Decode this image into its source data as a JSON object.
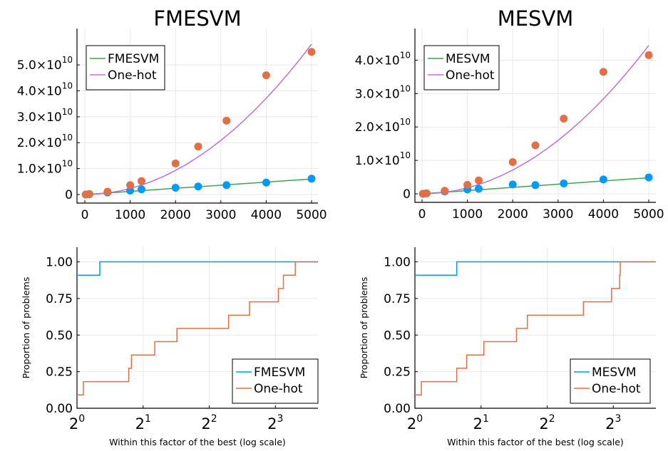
{
  "colors": {
    "green": "#3da44d",
    "purple": "#c271d2",
    "blue": "#009af9",
    "orange": "#e26f46",
    "scatter_blue": "#009af9",
    "scatter_orange": "#e26f46"
  },
  "chart_data": [
    {
      "type": "scatter",
      "title": "FMESVM",
      "xlabel": "",
      "ylabel": "",
      "xlim": [
        0,
        5000
      ],
      "ylim": [
        0,
        58000000000
      ],
      "x_ticks": [
        0,
        1000,
        2000,
        3000,
        4000,
        5000
      ],
      "x_tick_labels": [
        "0",
        "1000",
        "2000",
        "3000",
        "4000",
        "5000"
      ],
      "y_ticks": [
        0,
        10000000000,
        20000000000,
        30000000000,
        40000000000,
        50000000000
      ],
      "y_tick_labels": [
        {
          "base": "0",
          "exp": ""
        },
        {
          "base": "1.0×10",
          "exp": "10"
        },
        {
          "base": "2.0×10",
          "exp": "10"
        },
        {
          "base": "3.0×10",
          "exp": "10"
        },
        {
          "base": "4.0×10",
          "exp": "10"
        },
        {
          "base": "5.0×10",
          "exp": "10"
        }
      ],
      "grid": true,
      "legend_position": "top-left",
      "series": [
        {
          "name": "FMESVM",
          "kind": "line",
          "color": "green",
          "fit": "linear",
          "x": [
            0,
            5000
          ],
          "y": [
            0,
            6000000000
          ]
        },
        {
          "name": "One-hot",
          "kind": "line",
          "color": "purple",
          "fit": "quadratic",
          "x": [
            0,
            250,
            500,
            750,
            1000,
            1250,
            1500,
            1750,
            2000,
            2250,
            2500,
            2750,
            3000,
            3250,
            3500,
            3750,
            4000,
            4250,
            4500,
            4750,
            5000
          ],
          "y": [
            0,
            145000000,
            580000000,
            1305000000,
            2320000000,
            3625000000,
            5220000000,
            7105000000,
            9280000000,
            11745000000,
            14500000000,
            17545000000,
            20880000000,
            24505000000,
            28420000000,
            32625000000,
            37120000000,
            41905000000,
            46980000000,
            52345000000,
            58000000000
          ]
        },
        {
          "name": "",
          "kind": "points",
          "color": "scatter_blue",
          "x": [
            20,
            100,
            500,
            1000,
            1250,
            2000,
            2500,
            3125,
            4000,
            5000
          ],
          "y": [
            0,
            100000000,
            800000000,
            1500000000,
            2000000000,
            2600000000,
            3100000000,
            3600000000,
            4600000000,
            6100000000
          ]
        },
        {
          "name": "",
          "kind": "points",
          "color": "scatter_orange",
          "x": [
            20,
            100,
            500,
            1000,
            1250,
            2000,
            2500,
            3125,
            4000,
            5000
          ],
          "y": [
            0,
            200000000,
            1100000000,
            3600000000,
            5200000000,
            12000000000,
            18500000000,
            28500000000,
            46000000000,
            55000000000
          ]
        }
      ]
    },
    {
      "type": "scatter",
      "title": "MESVM",
      "xlabel": "",
      "ylabel": "",
      "xlim": [
        0,
        5000
      ],
      "ylim": [
        0,
        45000000000
      ],
      "x_ticks": [
        0,
        1000,
        2000,
        3000,
        4000,
        5000
      ],
      "x_tick_labels": [
        "0",
        "1000",
        "2000",
        "3000",
        "4000",
        "5000"
      ],
      "y_ticks": [
        0,
        10000000000,
        20000000000,
        30000000000,
        40000000000
      ],
      "y_tick_labels": [
        {
          "base": "0",
          "exp": ""
        },
        {
          "base": "1.0×10",
          "exp": "10"
        },
        {
          "base": "2.0×10",
          "exp": "10"
        },
        {
          "base": "3.0×10",
          "exp": "10"
        },
        {
          "base": "4.0×10",
          "exp": "10"
        }
      ],
      "grid": true,
      "legend_position": "top-left",
      "series": [
        {
          "name": "MESVM",
          "kind": "line",
          "color": "green",
          "fit": "linear",
          "x": [
            0,
            5000
          ],
          "y": [
            0,
            4800000000
          ]
        },
        {
          "name": "One-hot",
          "kind": "line",
          "color": "purple",
          "fit": "quadratic",
          "x": [
            0,
            250,
            500,
            750,
            1000,
            1250,
            1500,
            1750,
            2000,
            2250,
            2500,
            2750,
            3000,
            3250,
            3500,
            3750,
            4000,
            4250,
            4500,
            4750,
            5000
          ],
          "y": [
            0,
            111000000,
            444000000,
            999000000,
            1776000000,
            2775000000,
            3996000000,
            5439000000,
            7104000000,
            8991000000,
            11100000000,
            13431000000,
            15984000000,
            18759000000,
            21756000000,
            24975000000,
            28416000000,
            32079000000,
            35964000000,
            40071000000,
            44400000000
          ]
        },
        {
          "name": "",
          "kind": "points",
          "color": "scatter_blue",
          "x": [
            20,
            100,
            500,
            1000,
            1250,
            2000,
            2500,
            3125,
            4000,
            5000
          ],
          "y": [
            0,
            100000000,
            700000000,
            1300000000,
            1500000000,
            2800000000,
            2600000000,
            3100000000,
            4300000000,
            4900000000
          ]
        },
        {
          "name": "",
          "kind": "points",
          "color": "scatter_orange",
          "x": [
            20,
            100,
            500,
            1000,
            1250,
            2000,
            2500,
            3125,
            4000,
            5000
          ],
          "y": [
            0,
            150000000,
            900000000,
            2700000000,
            4000000000,
            9500000000,
            14500000000,
            22500000000,
            36500000000,
            41500000000
          ]
        }
      ]
    },
    {
      "type": "line",
      "title": "",
      "xlabel": "Within this factor of the best (log scale)",
      "ylabel": "Proportion of problems",
      "xscale": "log2",
      "xlim": [
        1,
        12.5
      ],
      "ylim": [
        0,
        1.1
      ],
      "x_ticks": [
        1,
        2,
        4,
        8
      ],
      "x_tick_labels": [
        {
          "base": "2",
          "exp": "0"
        },
        {
          "base": "2",
          "exp": "1"
        },
        {
          "base": "2",
          "exp": "2"
        },
        {
          "base": "2",
          "exp": "3"
        }
      ],
      "y_ticks": [
        0,
        0.25,
        0.5,
        0.75,
        1
      ],
      "y_tick_labels": [
        "0.00",
        "0.25",
        "0.50",
        "0.75",
        "1.00"
      ],
      "grid": true,
      "legend_position": "bottom-right",
      "series": [
        {
          "name": "FMESVM",
          "kind": "step",
          "color": "blue",
          "x": [
            1,
            1.27,
            12.5
          ],
          "y": [
            0.909,
            1.0,
            1.0
          ]
        },
        {
          "name": "One-hot",
          "kind": "step",
          "color": "orange",
          "x": [
            1,
            1.07,
            1.72,
            1.77,
            1.86,
            2.26,
            2.85,
            4.9,
            6.1,
            8.25,
            8.7,
            9.85,
            12.5
          ],
          "y": [
            0.091,
            0.182,
            0.273,
            0.364,
            0.364,
            0.455,
            0.545,
            0.636,
            0.727,
            0.818,
            0.909,
            1.0,
            1.0
          ]
        }
      ]
    },
    {
      "type": "line",
      "title": "",
      "xlabel": "Within this factor of the best (log scale)",
      "ylabel": "Proportion of problems",
      "xscale": "log2",
      "xlim": [
        1,
        12.5
      ],
      "ylim": [
        0,
        1.1
      ],
      "x_ticks": [
        1,
        2,
        4,
        8
      ],
      "x_tick_labels": [
        {
          "base": "2",
          "exp": "0"
        },
        {
          "base": "2",
          "exp": "1"
        },
        {
          "base": "2",
          "exp": "2"
        },
        {
          "base": "2",
          "exp": "3"
        }
      ],
      "y_ticks": [
        0,
        0.25,
        0.5,
        0.75,
        1
      ],
      "y_tick_labels": [
        "0.00",
        "0.25",
        "0.50",
        "0.75",
        "1.00"
      ],
      "grid": true,
      "legend_position": "bottom-right",
      "series": [
        {
          "name": "MESVM",
          "kind": "step",
          "color": "blue",
          "x": [
            1,
            1.55,
            12.5
          ],
          "y": [
            0.909,
            1.0,
            1.0
          ]
        },
        {
          "name": "One-hot",
          "kind": "step",
          "color": "orange",
          "x": [
            1,
            1.07,
            1.55,
            1.72,
            2.06,
            2.9,
            3.25,
            5.85,
            7.85,
            8.55,
            8.6,
            12.5
          ],
          "y": [
            0.091,
            0.182,
            0.273,
            0.364,
            0.455,
            0.545,
            0.636,
            0.727,
            0.818,
            0.909,
            1.0,
            1.0
          ]
        }
      ]
    }
  ]
}
